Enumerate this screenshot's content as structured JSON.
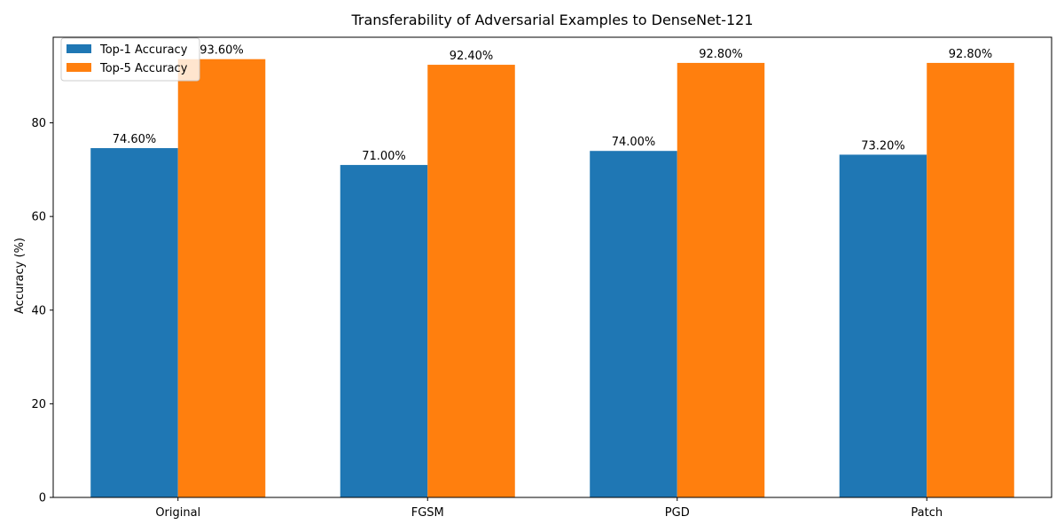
{
  "chart_data": {
    "type": "bar",
    "title": "Transferability of Adversarial Examples to DenseNet-121",
    "xlabel": "",
    "ylabel": "Accuracy (%)",
    "ylim": [
      0,
      98.28
    ],
    "yticks": [
      0,
      20,
      40,
      60,
      80
    ],
    "categories": [
      "Original",
      "FGSM",
      "PGD",
      "Patch"
    ],
    "series": [
      {
        "name": "Top-1 Accuracy",
        "color": "#1f77b4",
        "values": [
          74.6,
          71.0,
          74.0,
          73.2
        ],
        "labels": [
          "74.60%",
          "71.00%",
          "74.00%",
          "73.20%"
        ]
      },
      {
        "name": "Top-5 Accuracy",
        "color": "#ff7f0e",
        "values": [
          93.6,
          92.4,
          92.8,
          92.8
        ],
        "labels": [
          "93.60%",
          "92.40%",
          "92.80%",
          "92.80%"
        ]
      }
    ],
    "legend_position": "top-left",
    "grid": false
  }
}
